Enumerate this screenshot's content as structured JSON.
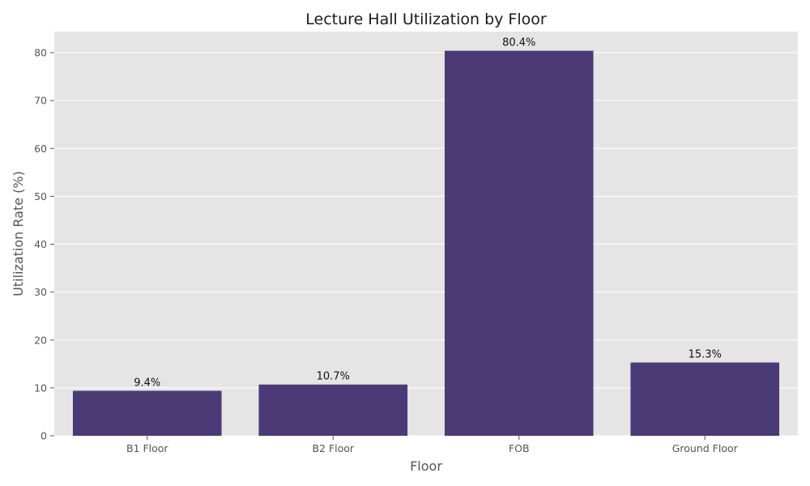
{
  "chart_data": {
    "type": "bar",
    "title": "Lecture Hall Utilization by Floor",
    "xlabel": "Floor",
    "ylabel": "Utilization Rate (%)",
    "categories": [
      "B1 Floor",
      "B2 Floor",
      "FOB",
      "Ground Floor"
    ],
    "values": [
      9.4,
      10.7,
      80.4,
      15.3
    ],
    "data_labels": [
      "9.4%",
      "10.7%",
      "80.4%",
      "15.3%"
    ],
    "ylim": [
      0,
      84.4
    ],
    "yticks": [
      0,
      10,
      20,
      30,
      40,
      50,
      60,
      70,
      80
    ],
    "grid": true,
    "legend": "none",
    "colors": {
      "bar": "#4a3b76",
      "plot_background": "#e5e5e5",
      "grid": "#ffffff"
    }
  }
}
